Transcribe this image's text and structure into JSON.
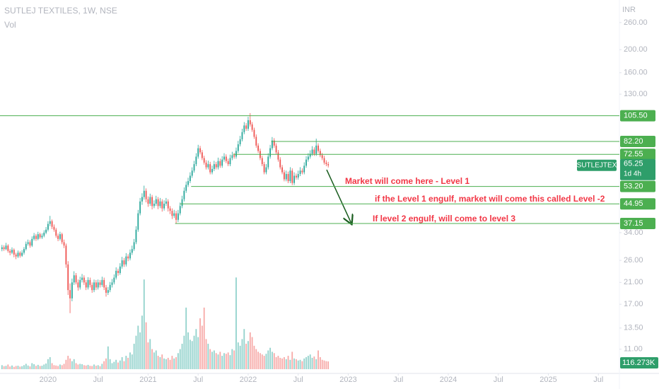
{
  "chart_data": {
    "type": "candlestick",
    "title": "SUTLEJ TEXTILES, 1W, NSE",
    "volume_title": "Vol",
    "currency": "INR",
    "symbol": "SUTLEJTEX",
    "countdown": "1d 4h",
    "log_scale": true,
    "grid": false,
    "up_color": "#26a69a",
    "down_color": "#ef5350",
    "level_color": "#4caf50",
    "xlim": [
      2019.52,
      2025.71
    ],
    "xticks": [
      {
        "value": 2020,
        "label": "2020"
      },
      {
        "value": 2020.5,
        "label": "Jul"
      },
      {
        "value": 2021,
        "label": "2021"
      },
      {
        "value": 2021.5,
        "label": "Jul"
      },
      {
        "value": 2022,
        "label": "2022"
      },
      {
        "value": 2022.5,
        "label": "Jul"
      },
      {
        "value": 2023,
        "label": "2023"
      },
      {
        "value": 2023.5,
        "label": "Jul"
      },
      {
        "value": 2024,
        "label": "2024"
      },
      {
        "value": 2024.5,
        "label": "Jul"
      },
      {
        "value": 2025,
        "label": "2025"
      },
      {
        "value": 2025.5,
        "label": "Jul"
      }
    ],
    "ylim": [
      8.7,
      323.5
    ],
    "yticks": [
      {
        "value": 260,
        "label": "260.00"
      },
      {
        "value": 200,
        "label": "200.00"
      },
      {
        "value": 160,
        "label": "160.00"
      },
      {
        "value": 130,
        "label": "130.00"
      },
      {
        "value": 34,
        "label": "34.00"
      },
      {
        "value": 26,
        "label": "26.00"
      },
      {
        "value": 21,
        "label": "21.00"
      },
      {
        "value": 17,
        "label": "17.00"
      },
      {
        "value": 13.5,
        "label": "13.50"
      },
      {
        "value": 11,
        "label": "11.00"
      }
    ],
    "vlim": [
      0,
      1500000
    ],
    "levels": [
      {
        "value": 105.5,
        "label": "105.50",
        "start": 2019.52
      },
      {
        "value": 82.2,
        "label": "82.20",
        "start": 2022.23
      },
      {
        "value": 72.55,
        "label": "72.55",
        "start": 2021.85
      },
      {
        "value": 53.2,
        "label": "53.20",
        "start": 2021.43
      },
      {
        "value": 44.95,
        "label": "44.95",
        "start": 2021.32
      },
      {
        "value": 37.15,
        "label": "37.15",
        "start": 2021.27
      }
    ],
    "annotations": [
      {
        "text": "Market will come here - Level 1"
      },
      {
        "text": "if the Level 1 engulf, market will come this called Level -2"
      },
      {
        "text": "If level 2 engulf, will come to level 3"
      }
    ],
    "x": [
      2019.54,
      2019.56,
      2019.58,
      2019.6,
      2019.62,
      2019.64,
      2019.66,
      2019.68,
      2019.7,
      2019.72,
      2019.74,
      2019.76,
      2019.78,
      2019.8,
      2019.82,
      2019.84,
      2019.86,
      2019.88,
      2019.9,
      2019.92,
      2019.94,
      2019.96,
      2019.98,
      2020,
      2020.02,
      2020.04,
      2020.06,
      2020.08,
      2020.1,
      2020.12,
      2020.14,
      2020.16,
      2020.18,
      2020.2,
      2020.22,
      2020.24,
      2020.26,
      2020.28,
      2020.3,
      2020.32,
      2020.34,
      2020.36,
      2020.38,
      2020.4,
      2020.42,
      2020.44,
      2020.46,
      2020.48,
      2020.5,
      2020.52,
      2020.54,
      2020.56,
      2020.58,
      2020.6,
      2020.62,
      2020.64,
      2020.66,
      2020.68,
      2020.7,
      2020.72,
      2020.74,
      2020.76,
      2020.78,
      2020.8,
      2020.82,
      2020.84,
      2020.86,
      2020.88,
      2020.9,
      2020.92,
      2020.94,
      2020.96,
      2020.98,
      2021,
      2021.02,
      2021.04,
      2021.06,
      2021.08,
      2021.1,
      2021.12,
      2021.14,
      2021.16,
      2021.18,
      2021.2,
      2021.22,
      2021.24,
      2021.26,
      2021.28,
      2021.3,
      2021.32,
      2021.34,
      2021.36,
      2021.38,
      2021.4,
      2021.42,
      2021.44,
      2021.46,
      2021.48,
      2021.5,
      2021.52,
      2021.54,
      2021.56,
      2021.58,
      2021.6,
      2021.62,
      2021.64,
      2021.66,
      2021.68,
      2021.7,
      2021.72,
      2021.74,
      2021.76,
      2021.78,
      2021.8,
      2021.82,
      2021.84,
      2021.86,
      2021.88,
      2021.9,
      2021.92,
      2021.94,
      2021.96,
      2021.98,
      2022,
      2022.02,
      2022.04,
      2022.06,
      2022.08,
      2022.1,
      2022.12,
      2022.14,
      2022.16,
      2022.18,
      2022.2,
      2022.22,
      2022.24,
      2022.26,
      2022.28,
      2022.3,
      2022.32,
      2022.34,
      2022.36,
      2022.38,
      2022.4,
      2022.42,
      2022.44,
      2022.46,
      2022.48,
      2022.5,
      2022.52,
      2022.54,
      2022.56,
      2022.58,
      2022.6,
      2022.62,
      2022.64,
      2022.66,
      2022.68,
      2022.7,
      2022.72,
      2022.74,
      2022.76,
      2022.78,
      2022.8
    ],
    "ohlc": [
      [
        29,
        30.2,
        28.4,
        29.5
      ],
      [
        29.5,
        30.1,
        28.5,
        29
      ],
      [
        29,
        30.8,
        28.7,
        30
      ],
      [
        30,
        30.4,
        28,
        28.5
      ],
      [
        28.5,
        29,
        27.3,
        28
      ],
      [
        28,
        29.5,
        27.6,
        28.8
      ],
      [
        28.8,
        29.2,
        26.8,
        27.5
      ],
      [
        27.5,
        28,
        26.3,
        27
      ],
      [
        27,
        28.6,
        26.6,
        28
      ],
      [
        28,
        28.4,
        26.7,
        27.2
      ],
      [
        27.2,
        28.7,
        26.9,
        28
      ],
      [
        28,
        29.6,
        27.5,
        29
      ],
      [
        29,
        31.2,
        28.6,
        30.5
      ],
      [
        30.5,
        31.8,
        30,
        31
      ],
      [
        31,
        31.6,
        29.4,
        30
      ],
      [
        30,
        32.8,
        29.6,
        32
      ],
      [
        32,
        33.9,
        31.5,
        33
      ],
      [
        33,
        33.6,
        31.4,
        32
      ],
      [
        32,
        34.3,
        31.6,
        33.5
      ],
      [
        33.5,
        34,
        32,
        32.5
      ],
      [
        32.5,
        33.8,
        32,
        33
      ],
      [
        33,
        34.8,
        32.5,
        34
      ],
      [
        34,
        35.9,
        33.5,
        35
      ],
      [
        35,
        38,
        34.4,
        37
      ],
      [
        37,
        40,
        36.2,
        38
      ],
      [
        38,
        38.6,
        35.2,
        36
      ],
      [
        36,
        36.8,
        34.3,
        35
      ],
      [
        35,
        35.6,
        32.4,
        33
      ],
      [
        33,
        33.7,
        31.3,
        32
      ],
      [
        32,
        34.3,
        31.5,
        33.5
      ],
      [
        33.5,
        34,
        30.4,
        31
      ],
      [
        31,
        31.8,
        29.3,
        30
      ],
      [
        30,
        30.6,
        24.2,
        25
      ],
      [
        25,
        25.8,
        18.6,
        19.5
      ],
      [
        19.5,
        20.8,
        15.6,
        18
      ],
      [
        18,
        21.8,
        17.5,
        21
      ],
      [
        21,
        23.4,
        20.5,
        22.5
      ],
      [
        22.5,
        23,
        20.6,
        21
      ],
      [
        21,
        21.6,
        19.4,
        20
      ],
      [
        20,
        22.2,
        19.6,
        21.5
      ],
      [
        21.5,
        22.8,
        21,
        22
      ],
      [
        22,
        22.5,
        20.5,
        21
      ],
      [
        21,
        21.5,
        19.5,
        20
      ],
      [
        20,
        22.1,
        19.6,
        21.5
      ],
      [
        21.5,
        22,
        20,
        20.5
      ],
      [
        20.5,
        21,
        19,
        19.5
      ],
      [
        19.5,
        21.6,
        19.1,
        21
      ],
      [
        21,
        21.5,
        19.5,
        20
      ],
      [
        20,
        21.6,
        19.6,
        21
      ],
      [
        21,
        21.5,
        20,
        20.5
      ],
      [
        20.5,
        22.2,
        20.1,
        21.5
      ],
      [
        21.5,
        22,
        19.5,
        20
      ],
      [
        20,
        20.5,
        18.3,
        19
      ],
      [
        19,
        20.1,
        18.6,
        19.5
      ],
      [
        19.5,
        21.1,
        19.1,
        20.5
      ],
      [
        20.5,
        21.7,
        20,
        21
      ],
      [
        21,
        22.7,
        20.6,
        22
      ],
      [
        22,
        24.3,
        21.6,
        23.5
      ],
      [
        23.5,
        24,
        22.4,
        23
      ],
      [
        23,
        25.3,
        22.6,
        24.5
      ],
      [
        24.5,
        26.9,
        24,
        26
      ],
      [
        26,
        26.6,
        24.4,
        25
      ],
      [
        25,
        27.9,
        24.5,
        27
      ],
      [
        27,
        27.6,
        25.8,
        26.5
      ],
      [
        26.5,
        28.9,
        26,
        28
      ],
      [
        28,
        30,
        27.4,
        29
      ],
      [
        29,
        32,
        28.5,
        31
      ],
      [
        31,
        36.2,
        30.4,
        35
      ],
      [
        35,
        42.4,
        34.3,
        41
      ],
      [
        41,
        47.6,
        40.2,
        46
      ],
      [
        46,
        49.8,
        44.5,
        48
      ],
      [
        48,
        53.6,
        46.8,
        51
      ],
      [
        51,
        52.2,
        45.6,
        47
      ],
      [
        47,
        48.3,
        43.7,
        45
      ],
      [
        45,
        49.6,
        44.1,
        48
      ],
      [
        48,
        49,
        42.6,
        44
      ],
      [
        44,
        46.5,
        43.1,
        45
      ],
      [
        45,
        48.6,
        44.1,
        47
      ],
      [
        47,
        48,
        42.7,
        44
      ],
      [
        44,
        47.6,
        43.1,
        46
      ],
      [
        46,
        47,
        41.7,
        43
      ],
      [
        43,
        46.5,
        42.1,
        45
      ],
      [
        45,
        47.6,
        44.1,
        46
      ],
      [
        46,
        47,
        41.7,
        43
      ],
      [
        43,
        44,
        40.7,
        42
      ],
      [
        42,
        43,
        38.8,
        40
      ],
      [
        40,
        42.4,
        39.2,
        41
      ],
      [
        41,
        42,
        37.3,
        38.5
      ],
      [
        38.5,
        42.4,
        37.7,
        41
      ],
      [
        41,
        45.5,
        40.2,
        44
      ],
      [
        44,
        48.6,
        43.1,
        47
      ],
      [
        47,
        52.7,
        46,
        51
      ],
      [
        51,
        55.8,
        50,
        54
      ],
      [
        54,
        57.9,
        52.9,
        56
      ],
      [
        56,
        61,
        54.9,
        59
      ],
      [
        59,
        64,
        57.8,
        62
      ],
      [
        62,
        68.2,
        60.8,
        66
      ],
      [
        66,
        73.4,
        64.7,
        71
      ],
      [
        71,
        79.6,
        69.6,
        77
      ],
      [
        77,
        78.8,
        72.5,
        74
      ],
      [
        74,
        75.7,
        68.6,
        70
      ],
      [
        70,
        71.6,
        65.7,
        67
      ],
      [
        67,
        68.6,
        62.7,
        64
      ],
      [
        64,
        68.3,
        62.7,
        66
      ],
      [
        66,
        67.5,
        59.8,
        61
      ],
      [
        61,
        65.1,
        59.8,
        63
      ],
      [
        63,
        68.2,
        61.7,
        66
      ],
      [
        66,
        67.5,
        62.7,
        64
      ],
      [
        64,
        70.3,
        62.7,
        68
      ],
      [
        68,
        69.6,
        63.7,
        65
      ],
      [
        65,
        71.3,
        63.7,
        69
      ],
      [
        69,
        73.4,
        67.6,
        71
      ],
      [
        71,
        72.6,
        66.6,
        68
      ],
      [
        68,
        69.6,
        64.7,
        66
      ],
      [
        66,
        72.4,
        64.7,
        70
      ],
      [
        70,
        74.4,
        68.6,
        72
      ],
      [
        72,
        73.6,
        69.6,
        71
      ],
      [
        71,
        77.5,
        69.6,
        75
      ],
      [
        75,
        82.7,
        73.5,
        80
      ],
      [
        80,
        86.8,
        78.4,
        84
      ],
      [
        84,
        93,
        82.3,
        90
      ],
      [
        90,
        99.2,
        88.2,
        96
      ],
      [
        96,
        98.2,
        91.1,
        93
      ],
      [
        93,
        104.4,
        91.1,
        101
      ],
      [
        101,
        108.2,
        95,
        97
      ],
      [
        97,
        99.2,
        90.2,
        92
      ],
      [
        92,
        94,
        84.3,
        86
      ],
      [
        86,
        88,
        77.4,
        79
      ],
      [
        79,
        80.8,
        73.5,
        75
      ],
      [
        75,
        76.7,
        68.6,
        70
      ],
      [
        70,
        71.6,
        64.7,
        66
      ],
      [
        66,
        67.5,
        59.8,
        61
      ],
      [
        61,
        66.1,
        59.8,
        64
      ],
      [
        64,
        73.4,
        62.7,
        71
      ],
      [
        71,
        79.6,
        69.6,
        77
      ],
      [
        77,
        85.8,
        75.5,
        83
      ],
      [
        83,
        84.9,
        77.4,
        79
      ],
      [
        79,
        80.8,
        72.5,
        74
      ],
      [
        74,
        75.7,
        67.6,
        69
      ],
      [
        69,
        70.6,
        62.7,
        64
      ],
      [
        64,
        65.5,
        59.8,
        61
      ],
      [
        61,
        62.4,
        55.9,
        57
      ],
      [
        57,
        62,
        55.9,
        60
      ],
      [
        60,
        61.4,
        54.9,
        56
      ],
      [
        56,
        64.1,
        54.9,
        62
      ],
      [
        62,
        63.4,
        53.9,
        55
      ],
      [
        55,
        61,
        53.9,
        59
      ],
      [
        59,
        60.3,
        56.8,
        58
      ],
      [
        58,
        62,
        56.8,
        60
      ],
      [
        60,
        64.1,
        58.8,
        62
      ],
      [
        62,
        63.4,
        59.8,
        61
      ],
      [
        61,
        67.2,
        59.8,
        65
      ],
      [
        65,
        71.3,
        63.7,
        69
      ],
      [
        69,
        73.4,
        67.6,
        71
      ],
      [
        71,
        75.5,
        69.6,
        73
      ],
      [
        73,
        78.6,
        71.5,
        76
      ],
      [
        76,
        77.7,
        71.5,
        73
      ],
      [
        73,
        84.5,
        71.5,
        79
      ],
      [
        79,
        80.8,
        73.5,
        75
      ],
      [
        75,
        76.7,
        70.6,
        72
      ],
      [
        72,
        73.6,
        68.6,
        70
      ],
      [
        70,
        71.6,
        65.7,
        67
      ],
      [
        67,
        68.5,
        64.7,
        66
      ],
      [
        66,
        67.5,
        63.9,
        65.25
      ]
    ],
    "volume": [
      60000,
      45000,
      50000,
      70000,
      40000,
      55000,
      35000,
      48000,
      52000,
      38000,
      45000,
      60000,
      80000,
      55000,
      42000,
      90000,
      75000,
      50000,
      65000,
      48000,
      52000,
      70000,
      85000,
      150000,
      180000,
      90000,
      60000,
      55000,
      48000,
      70000,
      60000,
      80000,
      140000,
      200000,
      160000,
      120000,
      150000,
      90000,
      70000,
      80000,
      75000,
      60000,
      55000,
      65000,
      50000,
      48000,
      70000,
      52000,
      60000,
      45000,
      80000,
      120000,
      160000,
      340000,
      150000,
      90000,
      110000,
      140000,
      100000,
      130000,
      180000,
      120000,
      200000,
      170000,
      250000,
      220000,
      380000,
      500000,
      650000,
      550000,
      800000,
      1340000,
      700000,
      400000,
      450000,
      300000,
      250000,
      280000,
      200000,
      180000,
      220000,
      160000,
      150000,
      170000,
      140000,
      200000,
      160000,
      180000,
      240000,
      300000,
      380000,
      500000,
      920000,
      550000,
      440000,
      420000,
      500000,
      600000,
      480000,
      760000,
      650000,
      920000,
      450000,
      380000,
      300000,
      260000,
      280000,
      240000,
      220000,
      260000,
      200000,
      240000,
      230000,
      250000,
      210000,
      300000,
      280000,
      1370000,
      400000,
      350000,
      450000,
      600000,
      380000,
      420000,
      550000,
      480000,
      350000,
      300000,
      260000,
      240000,
      220000,
      200000,
      230000,
      280000,
      320000,
      260000,
      240000,
      180000,
      200000,
      170000,
      160000,
      180000,
      150000,
      200000,
      140000,
      260000,
      160000,
      150000,
      130000,
      140000,
      120000,
      160000,
      180000,
      200000,
      220000,
      170000,
      190000,
      150000,
      280000,
      180000,
      140000,
      130000,
      120000,
      116273
    ],
    "volume_last_label": "116.273K"
  }
}
